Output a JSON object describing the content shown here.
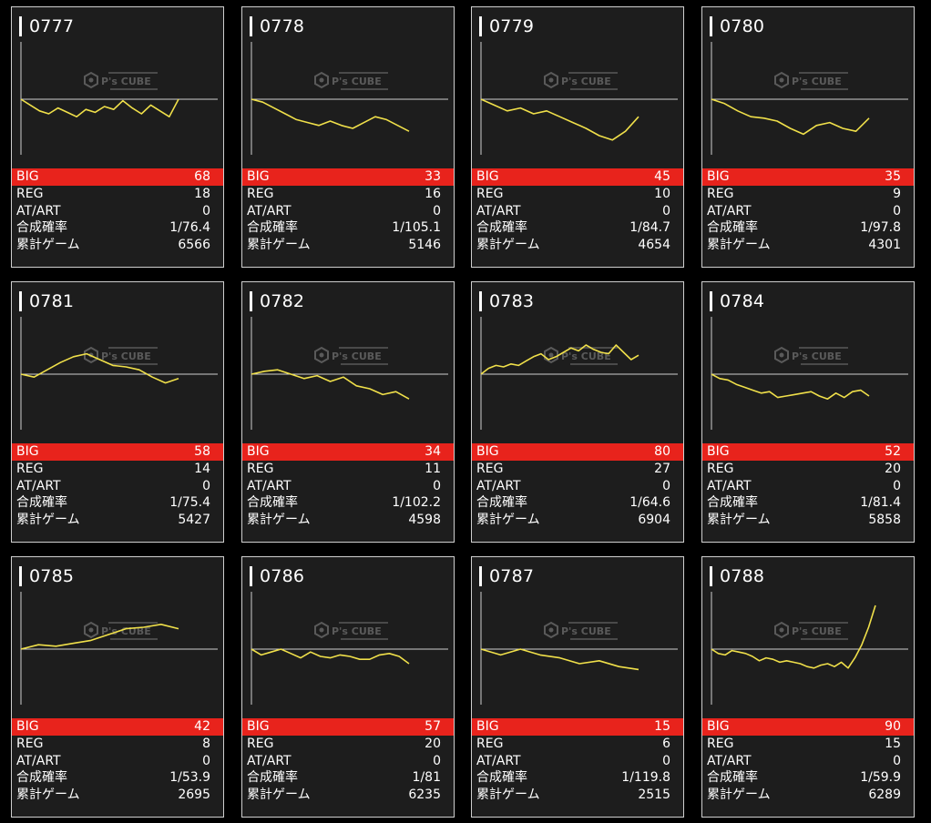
{
  "watermark": {
    "brand": "P's CUBE"
  },
  "row_labels": {
    "big": "BIG",
    "reg": "REG",
    "at": "AT/ART",
    "prob": "合成確率",
    "games": "累計ゲーム"
  },
  "colors": {
    "big_bar": "#e8231c",
    "line": "#f0e04a",
    "panel_bg": "#1d1d1d"
  },
  "machines": [
    {
      "number": "0777",
      "big": "68",
      "reg": "18",
      "at": "0",
      "prob": "1/76.4",
      "games": "6566",
      "graph": [
        0,
        -4,
        -8,
        -10,
        -6,
        -9,
        -12,
        -7,
        -9,
        -5,
        -7,
        -1,
        -6,
        -10,
        -4,
        -8,
        -12,
        0
      ]
    },
    {
      "number": "0778",
      "big": "33",
      "reg": "16",
      "at": "0",
      "prob": "1/105.1",
      "games": "5146",
      "graph": [
        0,
        -2,
        -6,
        -10,
        -14,
        -16,
        -18,
        -15,
        -18,
        -20,
        -16,
        -12,
        -14,
        -18,
        -22
      ]
    },
    {
      "number": "0779",
      "big": "45",
      "reg": "10",
      "at": "0",
      "prob": "1/84.7",
      "games": "4654",
      "graph": [
        0,
        -4,
        -8,
        -6,
        -10,
        -8,
        -12,
        -16,
        -20,
        -25,
        -28,
        -22,
        -12
      ]
    },
    {
      "number": "0780",
      "big": "35",
      "reg": "9",
      "at": "0",
      "prob": "1/97.8",
      "games": "4301",
      "graph": [
        0,
        -3,
        -8,
        -12,
        -13,
        -15,
        -20,
        -24,
        -18,
        -16,
        -20,
        -22,
        -13
      ]
    },
    {
      "number": "0781",
      "big": "58",
      "reg": "14",
      "at": "0",
      "prob": "1/75.4",
      "games": "5427",
      "graph": [
        0,
        -2,
        3,
        8,
        12,
        14,
        10,
        6,
        5,
        3,
        -2,
        -6,
        -3
      ]
    },
    {
      "number": "0782",
      "big": "34",
      "reg": "11",
      "at": "0",
      "prob": "1/102.2",
      "games": "4598",
      "graph": [
        0,
        2,
        3,
        0,
        -3,
        -1,
        -5,
        -2,
        -8,
        -10,
        -14,
        -12,
        -17
      ]
    },
    {
      "number": "0783",
      "big": "80",
      "reg": "27",
      "at": "0",
      "prob": "1/64.6",
      "games": "6904",
      "graph": [
        0,
        4,
        6,
        5,
        7,
        6,
        9,
        12,
        14,
        10,
        12,
        15,
        18,
        16,
        20,
        17,
        15,
        14,
        20,
        15,
        10,
        13
      ]
    },
    {
      "number": "0784",
      "big": "52",
      "reg": "20",
      "at": "0",
      "prob": "1/81.4",
      "games": "5858",
      "graph": [
        0,
        -3,
        -4,
        -7,
        -9,
        -11,
        -13,
        -12,
        -16,
        -15,
        -14,
        -13,
        -12,
        -15,
        -17,
        -13,
        -16,
        -12,
        -11,
        -15
      ]
    },
    {
      "number": "0785",
      "big": "42",
      "reg": "8",
      "at": "0",
      "prob": "1/53.9",
      "games": "2695",
      "graph": [
        0,
        3,
        2,
        4,
        6,
        10,
        14,
        15,
        17,
        14
      ]
    },
    {
      "number": "0786",
      "big": "57",
      "reg": "20",
      "at": "0",
      "prob": "1/81",
      "games": "6235",
      "graph": [
        0,
        -4,
        -2,
        0,
        -3,
        -6,
        -2,
        -5,
        -6,
        -4,
        -5,
        -7,
        -7,
        -4,
        -3,
        -5,
        -10
      ]
    },
    {
      "number": "0787",
      "big": "15",
      "reg": "6",
      "at": "0",
      "prob": "1/119.8",
      "games": "2515",
      "graph": [
        0,
        -4,
        0,
        -4,
        -6,
        -10,
        -8,
        -12,
        -14
      ]
    },
    {
      "number": "0788",
      "big": "90",
      "reg": "15",
      "at": "0",
      "prob": "1/59.9",
      "games": "6289",
      "graph": [
        0,
        -3,
        -4,
        -1,
        -2,
        -3,
        -5,
        -8,
        -6,
        -7,
        -9,
        -8,
        -9,
        -10,
        -12,
        -13,
        -11,
        -10,
        -12,
        -9,
        -13,
        -6,
        3,
        15,
        30
      ]
    }
  ]
}
